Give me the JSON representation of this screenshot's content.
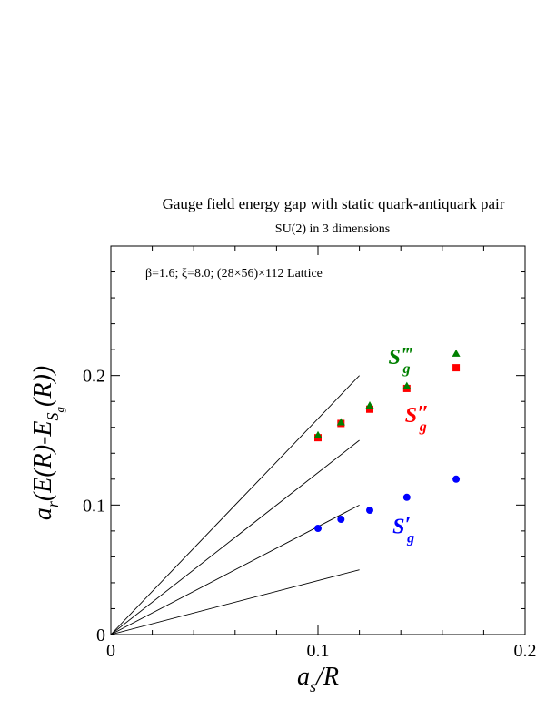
{
  "chart_data": {
    "type": "scatter",
    "title": "Gauge field energy gap with static quark-antiquark pair",
    "subtitle": "SU(2) in 3 dimensions",
    "annotation": "β=1.6;  ξ=8.0; (28×56)×112 Lattice",
    "xlabel": {
      "main": "a",
      "sub": "s",
      "rest": "/R"
    },
    "ylabel": {
      "pre": "a",
      "pre_sub": "r",
      "mid": "(E(R)-E",
      "s_sub": "S",
      "g_sub": "g",
      "end": "(R))"
    },
    "xlim": [
      0,
      0.2
    ],
    "ylim": [
      0,
      0.3
    ],
    "x_ticks": [
      {
        "value": 0,
        "label": "0"
      },
      {
        "value": 0.1,
        "label": "0.1"
      },
      {
        "value": 0.2,
        "label": "0.2"
      }
    ],
    "y_ticks": [
      {
        "value": 0,
        "label": "0"
      },
      {
        "value": 0.1,
        "label": "0.1"
      },
      {
        "value": 0.2,
        "label": "0.2"
      }
    ],
    "x_minor_step": 0.02,
    "y_minor_step": 0.02,
    "grid": false,
    "reference_lines": [
      {
        "slope": 0.4167,
        "x_end": 0.12
      },
      {
        "slope": 1.25,
        "x_end": 0.12
      },
      {
        "slope": 0.8333,
        "x_end": 0.12
      },
      {
        "slope": 1.6667,
        "x_end": 0.12
      }
    ],
    "series": [
      {
        "name_main": "S",
        "name_prime": "′",
        "name_sub": "g",
        "color": "#0000ff",
        "marker": "circle",
        "label_pos": [
          0.136,
          0.078
        ],
        "x": [
          0.1,
          0.1111,
          0.125,
          0.1429,
          0.1667
        ],
        "y": [
          0.082,
          0.089,
          0.096,
          0.106,
          0.12
        ]
      },
      {
        "name_main": "S",
        "name_prime": "″",
        "name_sub": "g",
        "color": "#ff0000",
        "marker": "square",
        "label_pos": [
          0.142,
          0.164
        ],
        "x": [
          0.1,
          0.1111,
          0.125,
          0.1429,
          0.1667
        ],
        "y": [
          0.152,
          0.163,
          0.174,
          0.19,
          0.206
        ]
      },
      {
        "name_main": "S",
        "name_prime": "‴",
        "name_sub": "g",
        "color": "#008000",
        "marker": "triangle",
        "label_pos": [
          0.134,
          0.209
        ],
        "x": [
          0.1,
          0.1111,
          0.125,
          0.1429,
          0.1667
        ],
        "y": [
          0.154,
          0.164,
          0.177,
          0.192,
          0.217
        ]
      }
    ]
  }
}
